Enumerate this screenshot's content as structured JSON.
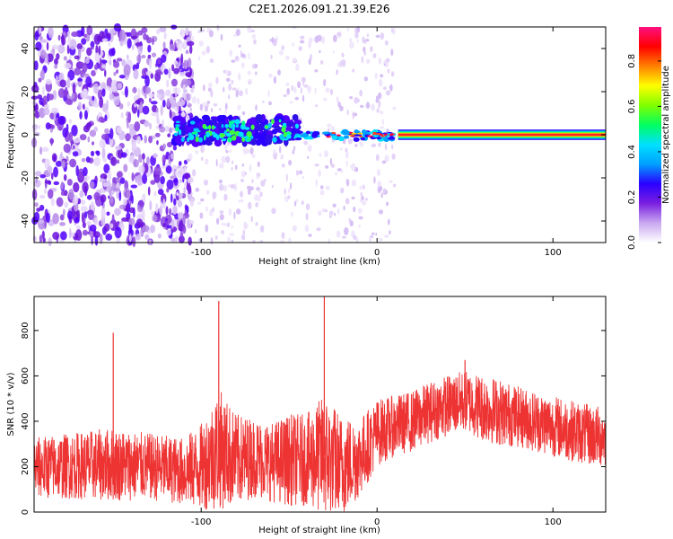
{
  "chart_data": [
    {
      "type": "heatmap",
      "title": "C2E1.2026.091.21.39.E26",
      "xlabel": "Height of straight line (km)",
      "ylabel": "Frequency (Hz)",
      "xlim": [
        -195,
        130
      ],
      "ylim": [
        -50,
        50
      ],
      "xticks": [
        -100,
        0,
        100
      ],
      "yticks": [
        -40,
        -20,
        0,
        20,
        40
      ],
      "xtick_labels": [
        "-100",
        "0",
        "100"
      ],
      "ytick_labels": [
        "-40",
        "-20",
        "0",
        "20",
        "40"
      ],
      "colorbar": {
        "label": "Normalized spectral amplitude",
        "range": [
          0.0,
          0.95
        ],
        "ticks": [
          0.0,
          0.2,
          0.4,
          0.6,
          0.8
        ],
        "tick_labels": [
          "0.0",
          "0.2",
          "0.4",
          "0.6",
          "0.8"
        ],
        "colormap": [
          "#ffffff",
          "#c9a8f0",
          "#7a1fe0",
          "#2a00ff",
          "#00a0ff",
          "#00e0ff",
          "#00ff60",
          "#80ff00",
          "#ffff00",
          "#ff8000",
          "#ff0000",
          "#ff1080"
        ]
      },
      "line_at_frequency": 0,
      "line_start_x": 12,
      "noise_region_end_x": -115,
      "blob_region": [
        -115,
        -45
      ],
      "tail_region": [
        -45,
        10
      ]
    },
    {
      "type": "line",
      "xlabel": "Height of straight line (km)",
      "ylabel": "SNR (10 * v/v)",
      "xlim": [
        -195,
        130
      ],
      "ylim": [
        0,
        950
      ],
      "xticks": [
        -100,
        0,
        100
      ],
      "yticks": [
        0,
        200,
        400,
        600,
        800
      ],
      "xtick_labels": [
        "-100",
        "0",
        "100"
      ],
      "ytick_labels": [
        "0",
        "200",
        "400",
        "600",
        "800"
      ],
      "series": [
        {
          "name": "SNR",
          "color": "#ee3333",
          "envelope": {
            "x": [
              -195,
              -170,
              -150,
              -130,
              -110,
              -100,
              -90,
              -80,
              -70,
              -60,
              -50,
              -40,
              -30,
              -20,
              -10,
              0,
              10,
              20,
              30,
              40,
              50,
              60,
              70,
              80,
              90,
              100,
              110,
              120,
              130
            ],
            "mean": [
              195,
              205,
              210,
              200,
              180,
              200,
              280,
              230,
              240,
              220,
              230,
              230,
              250,
              200,
              240,
              350,
              380,
              400,
              440,
              470,
              490,
              460,
              440,
              420,
              400,
              380,
              360,
              340,
              330
            ],
            "spread": [
              100,
              110,
              120,
              110,
              110,
              140,
              200,
              150,
              130,
              130,
              150,
              150,
              200,
              170,
              130,
              110,
              100,
              100,
              100,
              100,
              100,
              110,
              110,
              100,
              100,
              100,
              100,
              100,
              100
            ]
          },
          "spikes": [
            {
              "x": -150,
              "y": 790
            },
            {
              "x": -90,
              "y": 930
            },
            {
              "x": -30,
              "y": 950
            },
            {
              "x": 50,
              "y": 670
            }
          ]
        }
      ]
    }
  ]
}
